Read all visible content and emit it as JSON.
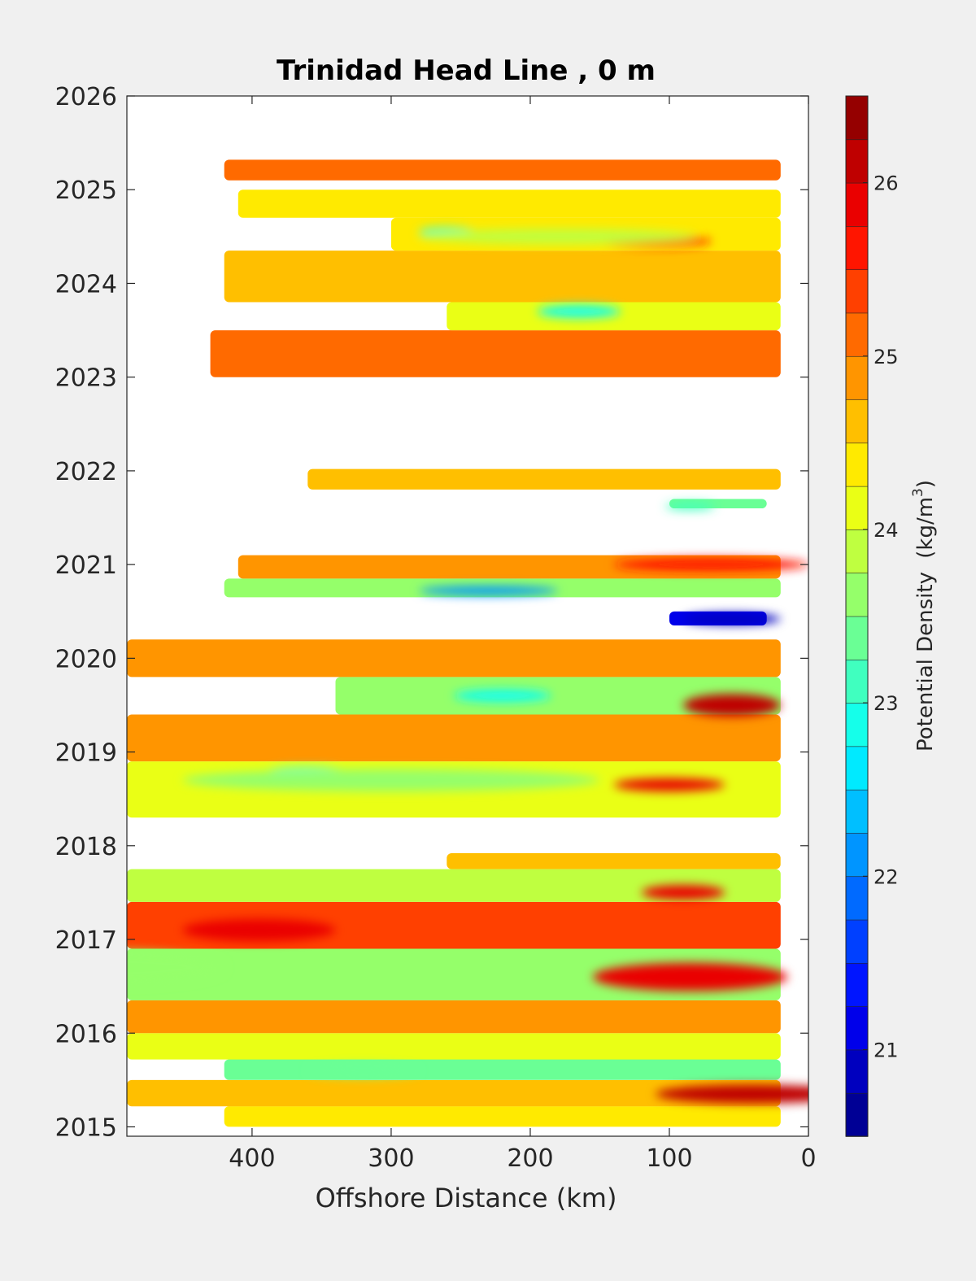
{
  "chart_data": {
    "type": "heatmap",
    "title": "Trinidad Head Line , 0 m",
    "xlabel": "Offshore Distance (km)",
    "ylabel": "",
    "xlim": [
      490,
      0
    ],
    "ylim": [
      2014.9,
      2026
    ],
    "x_reversed": true,
    "x_ticks": [
      400,
      300,
      200,
      100,
      0
    ],
    "y_ticks": [
      2015,
      2016,
      2017,
      2018,
      2019,
      2020,
      2021,
      2022,
      2023,
      2024,
      2025,
      2026
    ],
    "colorbar": {
      "label": "Potential Density",
      "units_prefix": "(kg/m",
      "units_exp": "3",
      "units_suffix": ")",
      "range": [
        20.5,
        26.5
      ],
      "ticks": [
        21,
        22,
        23,
        24,
        25,
        26
      ],
      "levels": 24,
      "colormap": "jet-reversed"
    },
    "bands": [
      {
        "y0": 2015.0,
        "y1": 2015.22,
        "x_start": 420,
        "x_end": 20,
        "value": 24.3
      },
      {
        "y0": 2015.22,
        "y1": 2015.5,
        "x_start": 490,
        "x_end": 20,
        "value": 24.6
      },
      {
        "y0": 2015.5,
        "y1": 2015.72,
        "x_start": 420,
        "x_end": 20,
        "value": 23.4
      },
      {
        "y0": 2015.72,
        "y1": 2016.0,
        "x_start": 490,
        "x_end": 20,
        "value": 24.0
      },
      {
        "y0": 2016.0,
        "y1": 2016.35,
        "x_start": 490,
        "x_end": 20,
        "value": 24.8
      },
      {
        "y0": 2016.35,
        "y1": 2016.9,
        "x_start": 490,
        "x_end": 20,
        "value": 23.6
      },
      {
        "y0": 2016.9,
        "y1": 2017.4,
        "x_start": 490,
        "x_end": 20,
        "value": 25.3
      },
      {
        "y0": 2017.4,
        "y1": 2017.75,
        "x_start": 490,
        "x_end": 20,
        "value": 23.8
      },
      {
        "y0": 2017.75,
        "y1": 2017.92,
        "x_start": 260,
        "x_end": 20,
        "value": 24.6
      },
      {
        "y0": 2018.3,
        "y1": 2018.9,
        "x_start": 490,
        "x_end": 20,
        "value": 24.0
      },
      {
        "y0": 2018.9,
        "y1": 2019.4,
        "x_start": 490,
        "x_end": 20,
        "value": 24.9
      },
      {
        "y0": 2019.4,
        "y1": 2019.8,
        "x_start": 340,
        "x_end": 20,
        "value": 23.5
      },
      {
        "y0": 2019.8,
        "y1": 2020.2,
        "x_start": 490,
        "x_end": 20,
        "value": 24.8
      },
      {
        "y0": 2020.35,
        "y1": 2020.5,
        "x_start": 100,
        "x_end": 30,
        "value": 21.0
      },
      {
        "y0": 2020.65,
        "y1": 2020.85,
        "x_start": 420,
        "x_end": 20,
        "value": 23.6
      },
      {
        "y0": 2020.85,
        "y1": 2021.1,
        "x_start": 410,
        "x_end": 20,
        "value": 24.8
      },
      {
        "y0": 2021.6,
        "y1": 2021.7,
        "x_start": 100,
        "x_end": 30,
        "value": 23.4
      },
      {
        "y0": 2021.8,
        "y1": 2022.02,
        "x_start": 360,
        "x_end": 20,
        "value": 24.6
      },
      {
        "y0": 2023.0,
        "y1": 2023.5,
        "x_start": 430,
        "x_end": 20,
        "value": 25.0
      },
      {
        "y0": 2023.5,
        "y1": 2023.8,
        "x_start": 260,
        "x_end": 20,
        "value": 24.2
      },
      {
        "y0": 2023.8,
        "y1": 2024.35,
        "x_start": 420,
        "x_end": 20,
        "value": 24.6
      },
      {
        "y0": 2024.35,
        "y1": 2024.7,
        "x_start": 300,
        "x_end": 20,
        "value": 24.4
      },
      {
        "y0": 2024.7,
        "y1": 2025.0,
        "x_start": 410,
        "x_end": 20,
        "value": 24.3
      },
      {
        "y0": 2025.1,
        "y1": 2025.32,
        "x_start": 420,
        "x_end": 20,
        "value": 25.0
      }
    ],
    "features": [
      {
        "x": 220,
        "y": 2019.6,
        "rx": 35,
        "ry": 0.07,
        "value": 22.8
      },
      {
        "x": 360,
        "y": 2018.78,
        "rx": 30,
        "ry": 0.06,
        "value": 22.8
      },
      {
        "x": 230,
        "y": 2020.72,
        "rx": 50,
        "ry": 0.05,
        "value": 22.0
      },
      {
        "x": 55,
        "y": 2020.42,
        "rx": 35,
        "ry": 0.06,
        "value": 20.8
      },
      {
        "x": 165,
        "y": 2023.7,
        "rx": 30,
        "ry": 0.07,
        "value": 22.9
      },
      {
        "x": 260,
        "y": 2024.55,
        "rx": 20,
        "ry": 0.05,
        "value": 23.0
      },
      {
        "x": 320,
        "y": 2015.6,
        "rx": 40,
        "ry": 0.06,
        "value": 23.3
      },
      {
        "x": 55,
        "y": 2019.5,
        "rx": 35,
        "ry": 0.12,
        "value": 26.0
      },
      {
        "x": 40,
        "y": 2015.35,
        "rx": 70,
        "ry": 0.1,
        "value": 26.0
      },
      {
        "x": 100,
        "y": 2018.65,
        "rx": 40,
        "ry": 0.07,
        "value": 25.8
      },
      {
        "x": 90,
        "y": 2017.5,
        "rx": 30,
        "ry": 0.08,
        "value": 25.8
      },
      {
        "x": 110,
        "y": 2024.45,
        "rx": 40,
        "ry": 0.06,
        "value": 25.6
      },
      {
        "x": 70,
        "y": 2021.0,
        "rx": 70,
        "ry": 0.07,
        "value": 25.6
      },
      {
        "x": 85,
        "y": 2016.6,
        "rx": 70,
        "ry": 0.15,
        "value": 25.8
      },
      {
        "x": 395,
        "y": 2017.1,
        "rx": 55,
        "ry": 0.12,
        "value": 25.8
      },
      {
        "x": 85,
        "y": 2021.62,
        "rx": 18,
        "ry": 0.04,
        "value": 23.0
      },
      {
        "x": 500,
        "y": 2016.7,
        "rx": 80,
        "ry": 0.18,
        "value": 23.5
      },
      {
        "x": 300,
        "y": 2018.7,
        "rx": 150,
        "ry": 0.12,
        "value": 23.6
      },
      {
        "x": 180,
        "y": 2024.5,
        "rx": 100,
        "ry": 0.08,
        "value": 23.8
      }
    ]
  }
}
